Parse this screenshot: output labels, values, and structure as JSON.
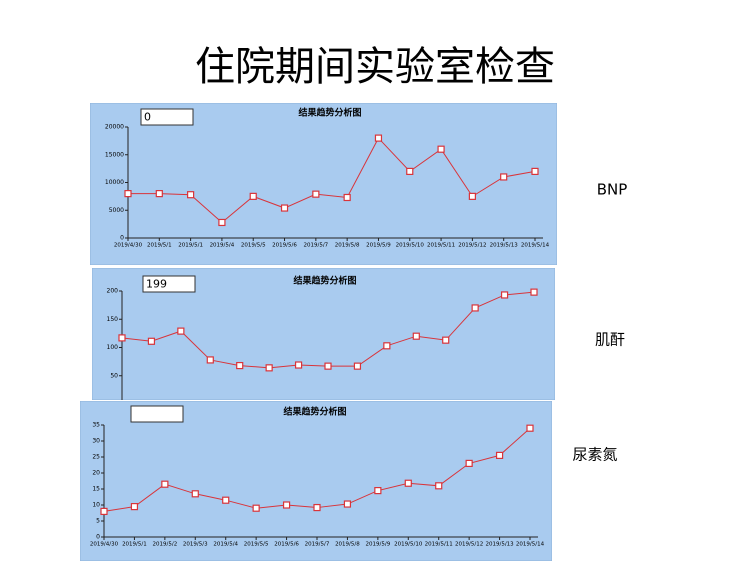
{
  "title": "住院期间实验室检查",
  "chart_data": [
    {
      "type": "line",
      "title": "结果趋势分析图",
      "label": "BNP",
      "input_value": "0",
      "categories": [
        "2019/4/30",
        "2019/5/1",
        "2019/5/1",
        "2019/5/4",
        "2019/5/5",
        "2019/5/6",
        "2019/5/7",
        "2019/5/8",
        "2019/5/9",
        "2019/5/10",
        "2019/5/11",
        "2019/5/12",
        "2019/5/13",
        "2019/5/14"
      ],
      "series": [
        {
          "color": "#d9343a",
          "values": [
            8000,
            8000,
            7800,
            2800,
            7500,
            5400,
            7900,
            7300,
            18000,
            12000,
            16000,
            7500,
            11000,
            12000
          ]
        }
      ],
      "ylim": [
        0,
        20000
      ],
      "yticks": [
        0,
        5000,
        10000,
        15000,
        20000
      ]
    },
    {
      "type": "line",
      "title": "结果趋势分析图",
      "label": "肌酐",
      "input_value": "199",
      "categories": [
        null,
        null,
        null,
        null,
        null,
        null,
        null,
        null,
        null,
        null,
        null,
        null,
        null,
        null,
        null
      ],
      "series": [
        {
          "color": "#d9343a",
          "values": [
            117,
            111,
            129,
            78,
            68,
            64,
            69,
            67,
            67,
            103,
            120,
            113,
            170,
            193,
            198
          ]
        }
      ],
      "ylim": [
        0,
        200
      ],
      "yticks": [
        50,
        100,
        150,
        200
      ]
    },
    {
      "type": "line",
      "title": "结果趋势分析图",
      "label": "尿素氮",
      "categories": [
        "2019/4/30",
        "2019/5/1",
        "2019/5/2",
        "2019/5/3",
        "2019/5/4",
        "2019/5/5",
        "2019/5/6",
        "2019/5/7",
        "2019/5/8",
        "2019/5/9",
        "2019/5/10",
        "2019/5/11",
        "2019/5/12",
        "2019/5/13",
        "2019/5/14"
      ],
      "series": [
        {
          "color": "#d9343a",
          "values": [
            8,
            9.5,
            16.5,
            13.5,
            11.5,
            9,
            10,
            9.2,
            10.3,
            14.5,
            16.8,
            16,
            23,
            25.5,
            34
          ]
        }
      ],
      "ylim": [
        0,
        35
      ],
      "yticks": [
        0,
        5,
        10,
        15,
        20,
        25,
        30,
        35
      ]
    }
  ]
}
